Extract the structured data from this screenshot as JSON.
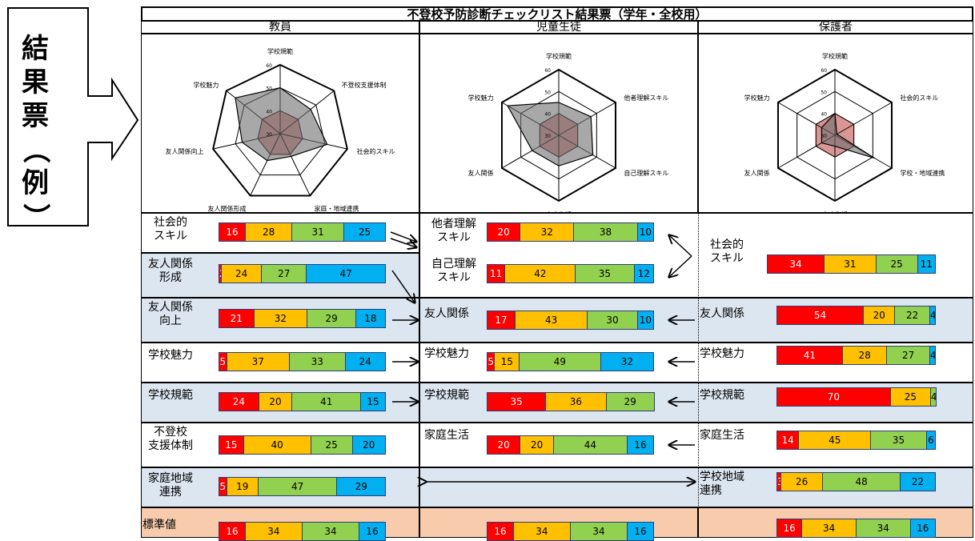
{
  "page": {
    "title": "不登校予防診断チェックリスト結果票（学年・全校用）",
    "side_label": "結果票（例）",
    "side_label_chars": [
      "結",
      "果",
      "票",
      "（",
      "例",
      "）"
    ]
  },
  "colors": {
    "red": "#ff0000",
    "orange": "#ffc000",
    "green": "#92d050",
    "blue": "#00b0f0",
    "row_tint": "#dce6f1",
    "standard_tint": "#f8cbad"
  },
  "columns": {
    "teacher": "教員",
    "student": "児童生徒",
    "parent": "保護者"
  },
  "radar": {
    "ticks": [
      "30",
      "40",
      "50",
      "60"
    ],
    "teacher": {
      "axes": [
        "学校規範",
        "不登校支援体制",
        "社会的スキル",
        "家庭・地域連携",
        "友人関係形成",
        "友人関係向上",
        "学校魅力"
      ],
      "values": [
        50,
        47,
        51,
        41,
        43,
        47,
        55
      ]
    },
    "student": {
      "axes": [
        "学校規範",
        "他者理解スキル",
        "自己理解スキル",
        "家庭生活",
        "友人関係",
        "学校魅力"
      ],
      "values": [
        45,
        47,
        48,
        44,
        44,
        57
      ]
    },
    "parent": {
      "axes": [
        "学校規範",
        "社会的スキル",
        "学校・地域連携",
        "家庭生活",
        "友人関係",
        "学校魅力"
      ],
      "values": [
        40,
        31,
        51,
        35,
        37,
        37
      ]
    },
    "standard_value": 40
  },
  "rows": [
    {
      "id": "social",
      "teacher": {
        "label": "社会的\nスキル",
        "values": [
          16,
          28,
          31,
          25
        ]
      },
      "student": [
        {
          "label": "他者理解\nスキル",
          "values": [
            20,
            32,
            38,
            10
          ]
        },
        {
          "label": "自己理解\nスキル",
          "values": [
            11,
            42,
            35,
            12
          ]
        }
      ],
      "parent": {
        "label": "社会的\nスキル",
        "values": [
          34,
          31,
          25,
          11
        ]
      }
    },
    {
      "id": "friend-form",
      "teacher": {
        "label": "友人関係\n形成",
        "values": [
          2,
          24,
          27,
          47
        ]
      }
    },
    {
      "id": "friend",
      "teacher": {
        "label": "友人関係\n向上",
        "values": [
          21,
          32,
          29,
          18
        ]
      },
      "student": {
        "label": "友人関係",
        "values": [
          17,
          43,
          30,
          10
        ]
      },
      "parent": {
        "label": "友人関係",
        "values": [
          54,
          20,
          22,
          4
        ]
      }
    },
    {
      "id": "charm",
      "teacher": {
        "label": "学校魅力",
        "values": [
          5,
          37,
          33,
          24
        ]
      },
      "student": {
        "label": "学校魅力",
        "values": [
          5,
          15,
          49,
          32
        ]
      },
      "parent": {
        "label": "学校魅力",
        "values": [
          41,
          28,
          27,
          4
        ]
      }
    },
    {
      "id": "norm",
      "teacher": {
        "label": "学校規範",
        "values": [
          24,
          20,
          41,
          15
        ]
      },
      "student": {
        "label": "学校規範",
        "values": [
          35,
          36,
          29
        ]
      },
      "parent": {
        "label": "学校規範",
        "values": [
          70,
          25,
          4
        ]
      }
    },
    {
      "id": "support",
      "teacher": {
        "label": "不登校\n支援体制",
        "values": [
          15,
          40,
          25,
          20
        ]
      },
      "student": {
        "label": "家庭生活",
        "values": [
          20,
          20,
          44,
          16
        ]
      },
      "parent": {
        "label": "家庭生活",
        "values": [
          14,
          45,
          35,
          6
        ]
      }
    },
    {
      "id": "community",
      "teacher": {
        "label": "家庭地域\n連携",
        "values": [
          5,
          19,
          47,
          29
        ]
      },
      "parent": {
        "label": "学校地域\n連携",
        "values": [
          3,
          26,
          48,
          22
        ]
      }
    },
    {
      "id": "standard",
      "teacher": {
        "label": "標準値",
        "values": [
          16,
          34,
          34,
          16
        ]
      },
      "student": {
        "values": [
          16,
          34,
          34,
          16
        ]
      },
      "parent": {
        "values": [
          16,
          34,
          34,
          16
        ]
      }
    }
  ]
}
